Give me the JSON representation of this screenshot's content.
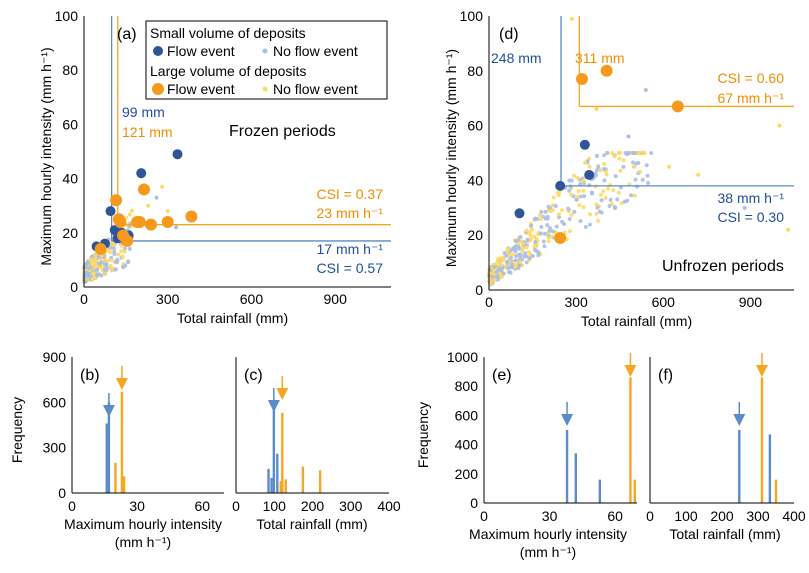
{
  "colors": {
    "small_flow": "#2f5597",
    "small_noflow": "#a9bfe3",
    "large_flow": "#f59a1c",
    "large_noflow": "#ffd966",
    "small_line": "#5b8bc8",
    "large_line": "#f5a623",
    "small_text": "#1f4e9c",
    "large_text": "#f08c00"
  },
  "legend": {
    "small_title": "Small volume of deposits",
    "large_title": "Large volume of deposits",
    "flow": "Flow event",
    "no_flow": "No flow event"
  },
  "chart_data": [
    {
      "id": "a",
      "panel_label": "(a)",
      "type": "scatter",
      "period_label": "Frozen periods",
      "xlabel": "Total rainfall (mm)",
      "ylabel": "Maximum hourly intensity (mm h⁻¹)",
      "xlim": [
        0,
        1100
      ],
      "ylim": [
        0,
        100
      ],
      "xticks": [
        "0",
        "300",
        "600",
        "900"
      ],
      "yticks": [
        "0",
        "20",
        "40",
        "60",
        "80",
        "100"
      ],
      "thresholds": {
        "small_total": 99,
        "large_total": 121,
        "small_intensity": 17,
        "large_intensity": 23
      },
      "annotations": {
        "small_total": "99 mm",
        "large_total": "121 mm",
        "large_csi": "CSI = 0.37",
        "large_intensity": "23 mm h⁻¹",
        "small_intensity": "17 mm h⁻¹",
        "small_csi": "CSI = 0.57"
      },
      "series": [
        {
          "name": "Small volume of deposits — Flow event",
          "points": [
            [
              45,
              15
            ],
            [
              75,
              16
            ],
            [
              95,
              28
            ],
            [
              110,
              21
            ],
            [
              120,
              18
            ],
            [
              135,
              20
            ],
            [
              150,
              17
            ],
            [
              160,
              19
            ],
            [
              205,
              42
            ],
            [
              335,
              49
            ]
          ]
        },
        {
          "name": "Large volume of deposits — Flow event",
          "points": [
            [
              60,
              14
            ],
            [
              115,
              32
            ],
            [
              125,
              25
            ],
            [
              130,
              24
            ],
            [
              140,
              19
            ],
            [
              190,
              24
            ],
            [
              200,
              24
            ],
            [
              215,
              36
            ],
            [
              240,
              23
            ],
            [
              300,
              24
            ],
            [
              385,
              26
            ],
            [
              155,
              17
            ]
          ]
        }
      ]
    },
    {
      "id": "d",
      "panel_label": "(d)",
      "type": "scatter",
      "period_label": "Unfrozen periods",
      "xlabel": "Total rainfall (mm)",
      "ylabel": "Maximum hourly intensity (mm h⁻¹)",
      "xlim": [
        0,
        1050
      ],
      "ylim": [
        0,
        100
      ],
      "xticks": [
        "0",
        "300",
        "600",
        "900"
      ],
      "yticks": [
        "0",
        "20",
        "40",
        "60",
        "80",
        "100"
      ],
      "thresholds": {
        "small_total": 248,
        "large_total": 311,
        "small_intensity": 38,
        "large_intensity": 67
      },
      "annotations": {
        "small_total": "248 mm",
        "large_total": "311 mm",
        "large_csi": "CSI = 0.60",
        "large_intensity": "67 mm h⁻¹",
        "small_intensity": "38 mm h⁻¹",
        "small_csi": "CSI = 0.30"
      },
      "series": [
        {
          "name": "Small volume of deposits — Flow event",
          "points": [
            [
              105,
              28
            ],
            [
              245,
              38
            ],
            [
              330,
              53
            ],
            [
              345,
              42
            ]
          ]
        },
        {
          "name": "Large volume of deposits — Flow event",
          "points": [
            [
              245,
              19
            ],
            [
              320,
              77
            ],
            [
              405,
              80
            ],
            [
              650,
              67
            ]
          ]
        }
      ]
    },
    {
      "id": "b",
      "panel_label": "(b)",
      "type": "bar",
      "xlabel": "Maximum hourly intensity",
      "xlabel2": "(mm h⁻¹)",
      "ylabel": "Frequency",
      "xlim": [
        0,
        70
      ],
      "ylim": [
        0,
        900
      ],
      "xticks": [
        "0",
        "30",
        "60"
      ],
      "yticks": [
        "0",
        "300",
        "600",
        "900"
      ],
      "markers": {
        "small": 17,
        "large": 23
      },
      "small_bars": [
        [
          16,
          460
        ],
        [
          17,
          600
        ]
      ],
      "large_bars": [
        [
          20,
          200
        ],
        [
          23,
          670
        ],
        [
          24,
          110
        ]
      ]
    },
    {
      "id": "c",
      "panel_label": "(c)",
      "type": "bar",
      "xlabel": "Total rainfall (mm)",
      "ylabel": "",
      "xlim": [
        0,
        400
      ],
      "ylim": [
        0,
        900
      ],
      "xticks": [
        "0",
        "100",
        "200",
        "300",
        "400"
      ],
      "yticks": [],
      "markers": {
        "small": 99,
        "large": 121
      },
      "small_bars": [
        [
          85,
          160
        ],
        [
          93,
          100
        ],
        [
          99,
          600
        ],
        [
          108,
          260
        ]
      ],
      "large_bars": [
        [
          117,
          80
        ],
        [
          121,
          530
        ],
        [
          130,
          90
        ],
        [
          175,
          175
        ],
        [
          220,
          150
        ]
      ]
    },
    {
      "id": "e",
      "panel_label": "(e)",
      "type": "bar",
      "xlabel": "Maximum hourly intensity",
      "xlabel2": "(mm h⁻¹)",
      "ylabel": "Frequency",
      "xlim": [
        0,
        70
      ],
      "ylim": [
        0,
        1000
      ],
      "xticks": [
        "0",
        "30",
        "60"
      ],
      "yticks": [
        "0",
        "200",
        "400",
        "600",
        "800",
        "1000"
      ],
      "markers": {
        "small": 38,
        "large": 67
      },
      "small_bars": [
        [
          38,
          500
        ],
        [
          42,
          340
        ],
        [
          53,
          160
        ]
      ],
      "large_bars": [
        [
          67,
          860
        ],
        [
          69,
          160
        ]
      ]
    },
    {
      "id": "f",
      "panel_label": "(f)",
      "type": "bar",
      "xlabel": "Total rainfall (mm)",
      "ylabel": "",
      "xlim": [
        0,
        400
      ],
      "ylim": [
        0,
        1000
      ],
      "xticks": [
        "0",
        "100",
        "200",
        "300",
        "400"
      ],
      "yticks": [],
      "markers": {
        "small": 248,
        "large": 311
      },
      "small_bars": [
        [
          248,
          500
        ],
        [
          333,
          470
        ]
      ],
      "large_bars": [
        [
          311,
          860
        ],
        [
          350,
          160
        ]
      ]
    }
  ]
}
